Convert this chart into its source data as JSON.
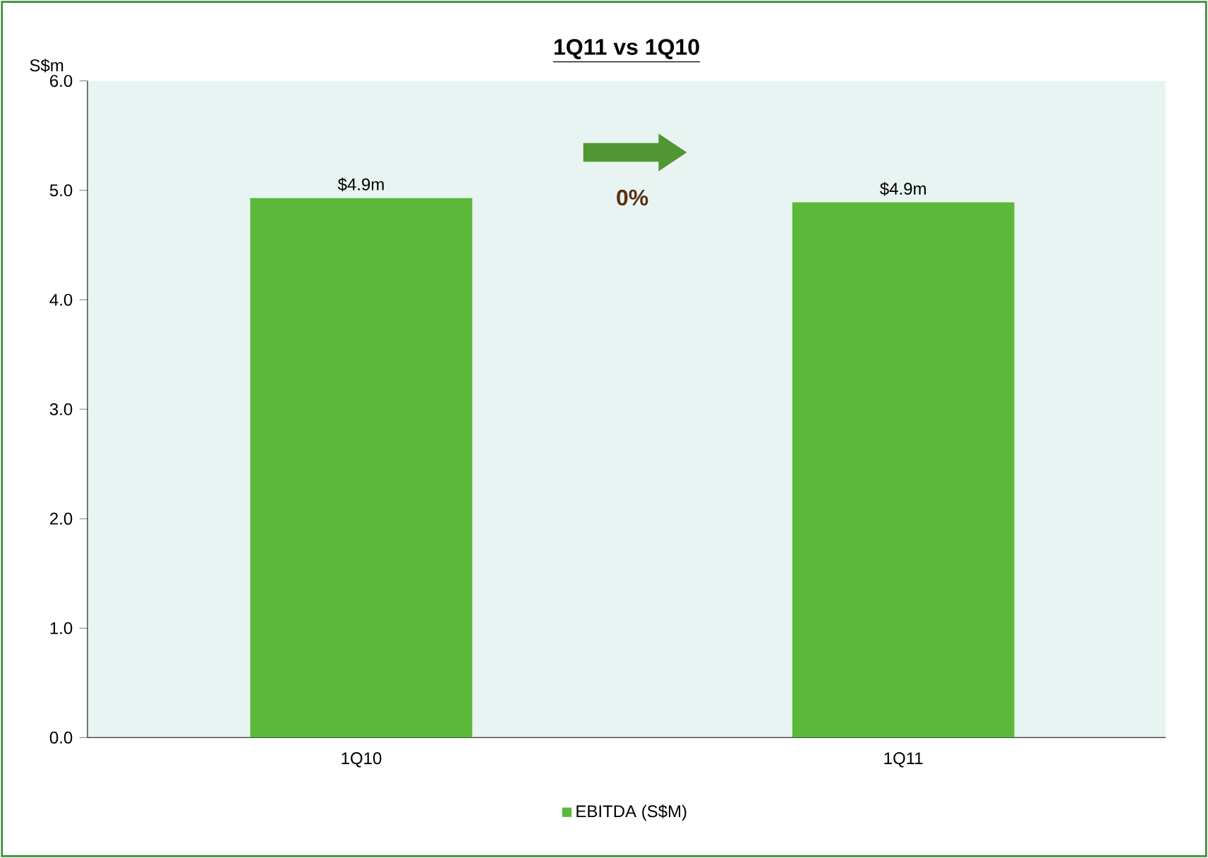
{
  "chart_data": {
    "type": "bar",
    "title": "1Q11 vs 1Q10",
    "ylabel": "S$m",
    "categories": [
      "1Q10",
      "1Q11"
    ],
    "series": [
      {
        "name": "EBITDA (S$M)",
        "color": "#5cb83a",
        "values": [
          4.93,
          4.89
        ],
        "value_labels": [
          "$4.9m",
          "$4.9m"
        ]
      }
    ],
    "ylim": [
      0,
      6
    ],
    "yticks": [
      {
        "value": 0,
        "label": "0.0"
      },
      {
        "value": 1,
        "label": "1.0"
      },
      {
        "value": 2,
        "label": "2.0"
      },
      {
        "value": 3,
        "label": "3.0"
      },
      {
        "value": 4,
        "label": "4.0"
      },
      {
        "value": 5,
        "label": "5.0"
      },
      {
        "value": 6,
        "label": "6.0"
      }
    ],
    "annotations": [
      "0%"
    ],
    "legend": "bottom",
    "grid": false
  }
}
